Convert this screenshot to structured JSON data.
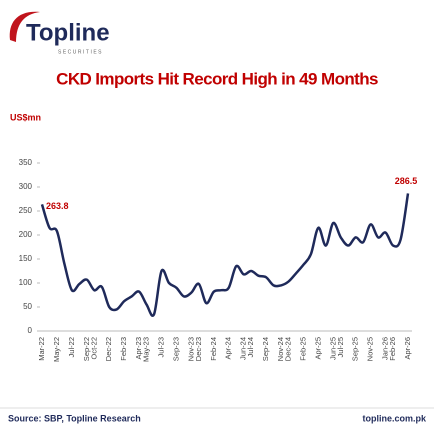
{
  "logo": {
    "name": "Topline",
    "tagline": "SECURITIES"
  },
  "footer": {
    "source": "Source: SBP, Topline Research",
    "website": "topline.com.pk"
  },
  "chart_data": {
    "type": "line",
    "title": "CKD Imports Hit Record High in 49 Months",
    "y_label": "US$mn",
    "categories": [
      "Mar-22",
      null,
      "May-22",
      null,
      "Jul-22",
      null,
      "Sep-22",
      "Oct-22",
      null,
      "Dec-22",
      null,
      "Feb-23",
      null,
      "Apr-23",
      "May-23",
      null,
      "Jul-23",
      null,
      "Sep-23",
      null,
      "Nov-23",
      "Dec-23",
      null,
      "Feb-24",
      null,
      "Apr-24",
      null,
      "Jun-24",
      "Jul-24",
      null,
      "Sep-24",
      null,
      "Nov-24",
      "Dec-24",
      null,
      "Feb-25",
      null,
      "Apr-25",
      null,
      "Jun-25",
      "Jul-25",
      null,
      "Sep-25",
      null,
      "Nov-25",
      null,
      "Jan-26",
      "Feb-26",
      null,
      "Apr-26"
    ],
    "series": [
      {
        "name": "CKD Imports",
        "color": "#1f2a5a",
        "values": [
          263.8,
          215,
          208,
          140,
          85,
          98,
          107,
          85,
          92,
          50,
          45,
          62,
          72,
          82,
          55,
          35,
          125,
          100,
          90,
          72,
          80,
          98,
          58,
          82,
          85,
          90,
          135,
          118,
          125,
          115,
          112,
          95,
          95,
          103,
          120,
          138,
          160,
          215,
          178,
          225,
          195,
          178,
          195,
          185,
          222,
          195,
          205,
          178,
          190,
          286.5
        ],
        "value_labels": [
          "263.8",
          null,
          null,
          null,
          null,
          null,
          null,
          null,
          null,
          null,
          null,
          null,
          null,
          null,
          null,
          null,
          null,
          null,
          null,
          null,
          null,
          null,
          null,
          null,
          null,
          null,
          null,
          null,
          null,
          null,
          null,
          null,
          null,
          null,
          null,
          null,
          null,
          null,
          null,
          null,
          null,
          null,
          null,
          null,
          null,
          null,
          null,
          null,
          null,
          "286.5"
        ]
      }
    ],
    "ylim": [
      0,
      350
    ],
    "yticks": [
      0,
      50,
      100,
      150,
      200,
      250,
      300,
      350
    ],
    "grid": false
  }
}
